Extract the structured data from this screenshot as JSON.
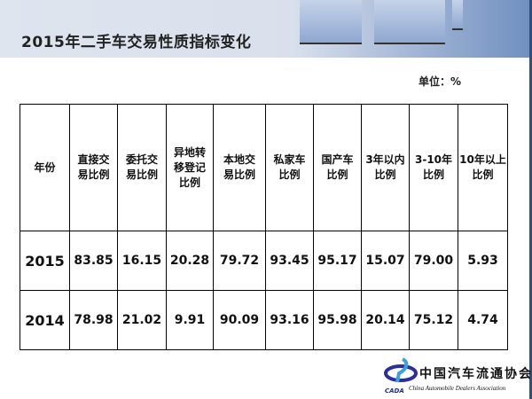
{
  "title": "2015年二手车交易性质指标变化",
  "unit": "单位：%",
  "table": {
    "headers": [
      "年份",
      "直接交易比例",
      "委托交易比例",
      "异地转移登记比例",
      "本地交易比例",
      "私家车比例",
      "国产车比例",
      "3年以内比例",
      "3-10年比例",
      "10年以上比例"
    ],
    "rows": [
      [
        "2015",
        "83.85",
        "16.15",
        "20.28",
        "79.72",
        "93.45",
        "95.17",
        "15.07",
        "79.00",
        "5.93"
      ],
      [
        "2014",
        "78.98",
        "21.02",
        "9.91",
        "90.09",
        "93.16",
        "95.98",
        "20.14",
        "75.12",
        "4.74"
      ]
    ]
  },
  "logo": {
    "name_cn": "中国汽车流通协会",
    "name_en": "China Automobile Dealers Association",
    "abbr": "CADA"
  },
  "colors": {
    "banner": "#d9e0ec",
    "accent": "#2e4e7e",
    "logo_blue": "#1e2f8c"
  }
}
